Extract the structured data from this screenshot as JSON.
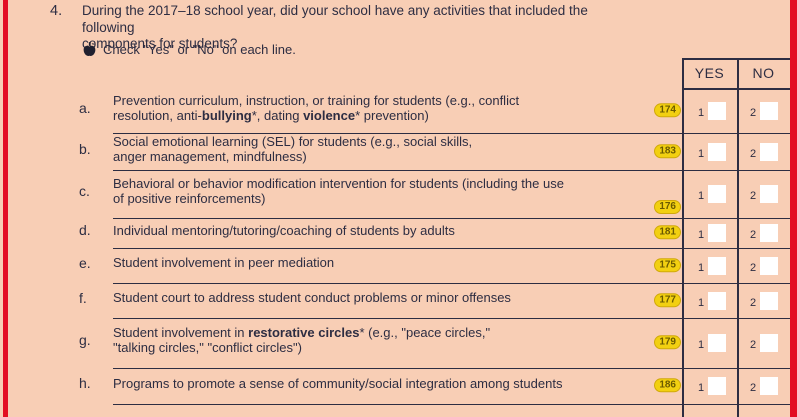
{
  "question": {
    "number": "4.",
    "line1": "During the 2017–18 school year, did your school have any activities that included the following",
    "line2": "components for students?",
    "instruction": "Check \"Yes\" or \"No\" on each line.",
    "instruction_icon": "apple-icon"
  },
  "table": {
    "yes_header": "YES",
    "no_header": "NO",
    "yes_value": "1",
    "no_value": "2"
  },
  "colors": {
    "page_background": "#f8ceb5",
    "ink": "#2d2d42",
    "page_border_red": "#e30d23",
    "badge_yellow": "#f2d011",
    "checkbox_white": "#ffffff"
  },
  "items": [
    {
      "letter": "a.",
      "code": "174",
      "lines": [
        [
          {
            "t": "Prevention curriculum, instruction, or training for students (e.g., conflict"
          }
        ],
        [
          {
            "t": "resolution, anti-"
          },
          {
            "t": "bullying",
            "b": true
          },
          {
            "t": "*, dating "
          },
          {
            "t": "violence",
            "b": true
          },
          {
            "t": "* prevention)"
          }
        ]
      ]
    },
    {
      "letter": "b.",
      "code": "183",
      "lines": [
        [
          {
            "t": "Social emotional learning (SEL) for students (e.g., social skills,"
          }
        ],
        [
          {
            "t": "anger management, mindfulness)"
          }
        ]
      ]
    },
    {
      "letter": "c.",
      "code": "176",
      "lines": [
        [
          {
            "t": "Behavioral or behavior modification intervention for students (including the use"
          }
        ],
        [
          {
            "t": "of positive reinforcements)"
          }
        ]
      ]
    },
    {
      "letter": "d.",
      "code": "181",
      "lines": [
        [
          {
            "t": "Individual mentoring/tutoring/coaching of students by adults"
          }
        ]
      ]
    },
    {
      "letter": "e.",
      "code": "175",
      "lines": [
        [
          {
            "t": "Student involvement in peer mediation"
          }
        ]
      ]
    },
    {
      "letter": "f.",
      "code": "177",
      "lines": [
        [
          {
            "t": "Student court to address student conduct problems or minor offenses"
          }
        ]
      ]
    },
    {
      "letter": "g.",
      "code": "179",
      "lines": [
        [
          {
            "t": "Student involvement in "
          },
          {
            "t": "restorative circles",
            "b": true
          },
          {
            "t": "* (e.g., \"peace circles,\""
          }
        ],
        [
          {
            "t": "\"talking circles,\" \"conflict circles\")"
          }
        ]
      ]
    },
    {
      "letter": "h.",
      "code": "186",
      "lines": [
        [
          {
            "t": "Programs to promote a sense of community/social integration among students"
          }
        ]
      ]
    }
  ]
}
